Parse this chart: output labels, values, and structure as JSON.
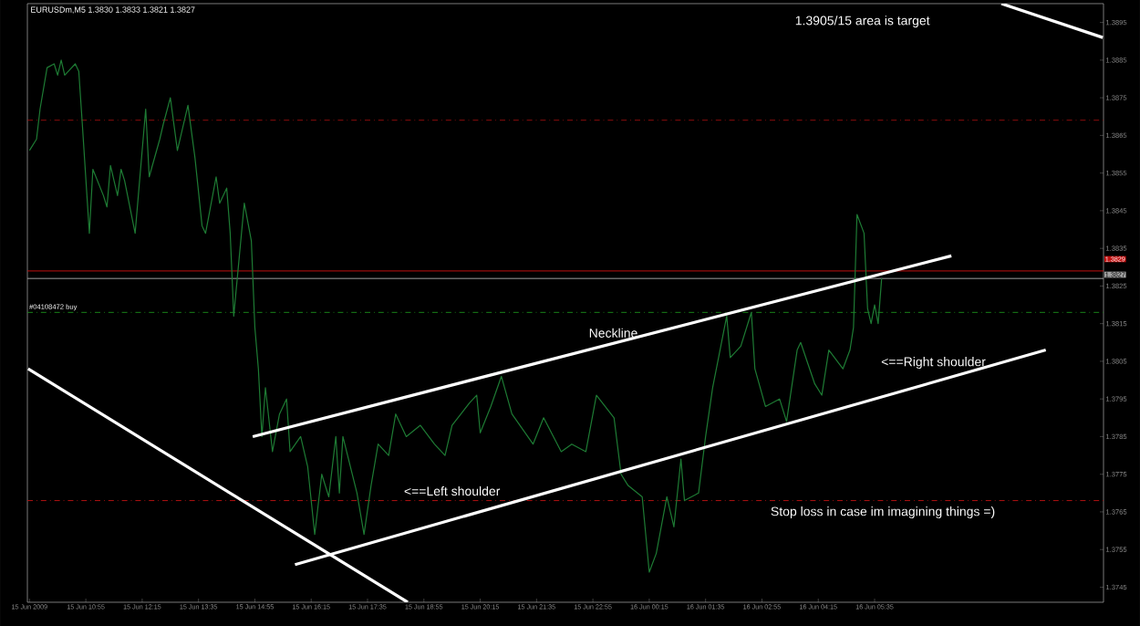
{
  "chart_data": {
    "type": "line",
    "title": "EURUSDm,M5  1.3830 1.3833 1.3821 1.3827",
    "xlim": [
      "2009-06-15T09:32",
      "2009-06-16T11:00"
    ],
    "ylim": [
      1.3741,
      1.39
    ],
    "xticks": [
      {
        "value": "2009-06-15T09:35",
        "label": "15 Jun 2009"
      },
      {
        "value": "2009-06-15T10:55",
        "label": "15 Jun 10:55"
      },
      {
        "value": "2009-06-15T12:15",
        "label": "15 Jun 12:15"
      },
      {
        "value": "2009-06-15T13:35",
        "label": "15 Jun 13:35"
      },
      {
        "value": "2009-06-15T14:55",
        "label": "15 Jun 14:55"
      },
      {
        "value": "2009-06-15T16:15",
        "label": "15 Jun 16:15"
      },
      {
        "value": "2009-06-15T17:35",
        "label": "15 Jun 17:35"
      },
      {
        "value": "2009-06-15T18:55",
        "label": "15 Jun 18:55"
      },
      {
        "value": "2009-06-15T20:15",
        "label": "15 Jun 20:15"
      },
      {
        "value": "2009-06-15T21:35",
        "label": "15 Jun 21:35"
      },
      {
        "value": "2009-06-15T22:55",
        "label": "15 Jun 22:55"
      },
      {
        "value": "2009-06-16T00:15",
        "label": "16 Jun 00:15"
      },
      {
        "value": "2009-06-16T01:35",
        "label": "16 Jun 01:35"
      },
      {
        "value": "2009-06-16T02:55",
        "label": "16 Jun 02:55"
      },
      {
        "value": "2009-06-16T04:15",
        "label": "16 Jun 04:15"
      },
      {
        "value": "2009-06-16T05:35",
        "label": "16 Jun 05:35"
      }
    ],
    "yticks": [
      1.3745,
      1.3755,
      1.3765,
      1.3775,
      1.3785,
      1.3795,
      1.3805,
      1.3815,
      1.3825,
      1.3835,
      1.3845,
      1.3855,
      1.3865,
      1.3875,
      1.3885,
      1.3895
    ],
    "series": [
      {
        "color": "#1e7b34",
        "x": [
          "2009-06-15T09:35",
          "2009-06-15T09:45",
          "2009-06-15T09:50",
          "2009-06-15T10:00",
          "2009-06-15T10:10",
          "2009-06-15T10:15",
          "2009-06-15T10:20",
          "2009-06-15T10:25",
          "2009-06-15T10:40",
          "2009-06-15T10:45",
          "2009-06-15T10:50",
          "2009-06-15T11:00",
          "2009-06-15T11:05",
          "2009-06-15T11:20",
          "2009-06-15T11:25",
          "2009-06-15T11:30",
          "2009-06-15T11:40",
          "2009-06-15T11:45",
          "2009-06-15T11:50",
          "2009-06-15T12:05",
          "2009-06-15T12:20",
          "2009-06-15T12:25",
          "2009-06-15T12:40",
          "2009-06-15T12:45",
          "2009-06-15T12:55",
          "2009-06-15T13:05",
          "2009-06-15T13:20",
          "2009-06-15T13:30",
          "2009-06-15T13:40",
          "2009-06-15T13:45",
          "2009-06-15T14:00",
          "2009-06-15T14:05",
          "2009-06-15T14:15",
          "2009-06-15T14:20",
          "2009-06-15T14:25",
          "2009-06-15T14:40",
          "2009-06-15T14:50",
          "2009-06-15T14:55",
          "2009-06-15T15:00",
          "2009-06-15T15:05",
          "2009-06-15T15:10",
          "2009-06-15T15:20",
          "2009-06-15T15:30",
          "2009-06-15T15:40",
          "2009-06-15T15:45",
          "2009-06-15T16:00",
          "2009-06-15T16:10",
          "2009-06-15T16:20",
          "2009-06-15T16:30",
          "2009-06-15T16:40",
          "2009-06-15T16:50",
          "2009-06-15T16:55",
          "2009-06-15T17:00",
          "2009-06-15T17:20",
          "2009-06-15T17:30",
          "2009-06-15T17:40",
          "2009-06-15T17:50",
          "2009-06-15T18:05",
          "2009-06-15T18:15",
          "2009-06-15T18:30",
          "2009-06-15T18:50",
          "2009-06-15T19:10",
          "2009-06-15T19:25",
          "2009-06-15T19:35",
          "2009-06-15T20:00",
          "2009-06-15T20:10",
          "2009-06-15T20:15",
          "2009-06-15T20:30",
          "2009-06-15T20:45",
          "2009-06-15T21:00",
          "2009-06-15T21:30",
          "2009-06-15T21:45",
          "2009-06-15T22:10",
          "2009-06-15T22:25",
          "2009-06-15T22:45",
          "2009-06-15T23:00",
          "2009-06-15T23:25",
          "2009-06-15T23:35",
          "2009-06-15T23:45",
          "2009-06-16T00:05",
          "2009-06-16T00:15",
          "2009-06-16T00:25",
          "2009-06-16T00:40",
          "2009-06-16T00:50",
          "2009-06-16T01:00",
          "2009-06-16T01:05",
          "2009-06-16T01:25",
          "2009-06-16T01:35",
          "2009-06-16T01:45",
          "2009-06-16T02:05",
          "2009-06-16T02:10",
          "2009-06-16T02:25",
          "2009-06-16T02:40",
          "2009-06-16T02:45",
          "2009-06-16T03:00",
          "2009-06-16T03:20",
          "2009-06-16T03:30",
          "2009-06-16T03:45",
          "2009-06-16T03:50",
          "2009-06-16T04:10",
          "2009-06-16T04:20",
          "2009-06-16T04:30",
          "2009-06-16T04:50",
          "2009-06-16T05:00",
          "2009-06-16T05:05",
          "2009-06-16T05:10",
          "2009-06-16T05:20",
          "2009-06-16T05:25",
          "2009-06-16T05:30",
          "2009-06-16T05:35",
          "2009-06-16T05:40",
          "2009-06-16T05:45"
        ],
        "values": [
          1.3861,
          1.3864,
          1.3872,
          1.3883,
          1.3884,
          1.3881,
          1.3885,
          1.3881,
          1.3884,
          1.3882,
          1.3868,
          1.3839,
          1.3856,
          1.3849,
          1.3846,
          1.3857,
          1.3849,
          1.3856,
          1.3853,
          1.3839,
          1.3872,
          1.3854,
          1.3864,
          1.3868,
          1.3875,
          1.3861,
          1.3873,
          1.3859,
          1.3841,
          1.3839,
          1.3854,
          1.3847,
          1.3851,
          1.3839,
          1.3817,
          1.3847,
          1.3837,
          1.3814,
          1.3803,
          1.3785,
          1.3798,
          1.3781,
          1.3791,
          1.3795,
          1.3781,
          1.3785,
          1.3777,
          1.3759,
          1.3775,
          1.3769,
          1.3785,
          1.377,
          1.3785,
          1.377,
          1.3759,
          1.3772,
          1.3783,
          1.378,
          1.3791,
          1.3785,
          1.3788,
          1.3783,
          1.378,
          1.3788,
          1.3794,
          1.3796,
          1.3786,
          1.3793,
          1.3801,
          1.3791,
          1.3783,
          1.379,
          1.3781,
          1.3783,
          1.3781,
          1.3796,
          1.379,
          1.3775,
          1.3772,
          1.3769,
          1.3749,
          1.3754,
          1.3769,
          1.3761,
          1.3779,
          1.3768,
          1.377,
          1.3785,
          1.3798,
          1.3817,
          1.3806,
          1.3809,
          1.3818,
          1.3803,
          1.3793,
          1.3795,
          1.3789,
          1.3808,
          1.381,
          1.3799,
          1.3796,
          1.3808,
          1.3803,
          1.3808,
          1.3814,
          1.3844,
          1.3839,
          1.3819,
          1.3815,
          1.382,
          1.3815,
          1.3827
        ]
      },
      {
        "color": "#ffffff",
        "x": [
          "2009-06-15T14:52",
          "2009-06-16T07:24"
        ],
        "values": [
          1.3785,
          1.3833
        ]
      },
      {
        "color": "#ffffff",
        "x": [
          "2009-06-15T15:52",
          "2009-06-16T09:38"
        ],
        "values": [
          1.3751,
          1.3808
        ]
      },
      {
        "color": "#ffffff",
        "x": [
          "2009-06-15T09:33",
          "2009-06-15T18:32"
        ],
        "values": [
          1.3803,
          1.3741
        ]
      },
      {
        "color": "#ffffff",
        "x": [
          "2009-06-16T08:35",
          "2009-06-16T10:59"
        ],
        "values": [
          1.39,
          1.3891
        ]
      }
    ],
    "ref_lines": [
      {
        "axis": "y",
        "value": 1.3869,
        "color": "#b01010",
        "line_style": "dashed"
      },
      {
        "axis": "y",
        "value": 1.3829,
        "color": "#c01010",
        "line_style": "solid",
        "label": "1.3829"
      },
      {
        "axis": "y",
        "value": 1.3827,
        "color": "#a0a0a0",
        "line_style": "solid",
        "label": "1.3827"
      },
      {
        "axis": "y",
        "value": 1.3818,
        "color": "#1a8a1a",
        "line_style": "dashed",
        "label": "#04108472 buy"
      },
      {
        "axis": "y",
        "value": 1.3768,
        "color": "#b01010",
        "line_style": "dashed"
      }
    ],
    "annotations": [
      "1.3905/15 area is target",
      {
        "text": "Neckline",
        "x": "2009-06-15T23:24",
        "y": 1.381
      },
      {
        "text": "<==Left shoulder",
        "x": "2009-06-15T19:35",
        "y": 1.3768
      },
      "<==Right shoulder",
      "Stop loss in case im imagining things =)"
    ],
    "grid": false,
    "marker": "none",
    "line_style": "solid"
  }
}
